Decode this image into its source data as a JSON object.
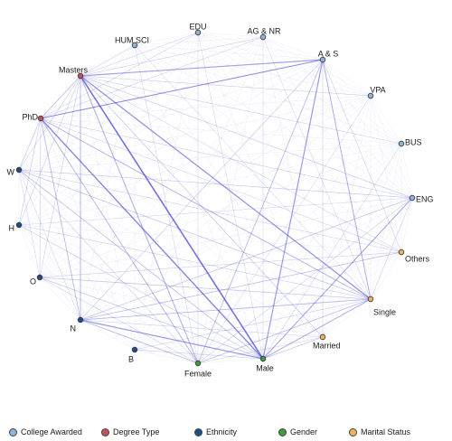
{
  "categories": {
    "college": {
      "label": "College Awarded",
      "color": "#8fb4d4"
    },
    "degree": {
      "label": "Degree Type",
      "color": "#c64f56"
    },
    "ethnicity": {
      "label": "Ethnicity",
      "color": "#1f4e87"
    },
    "gender": {
      "label": "Gender",
      "color": "#3f9b3f"
    },
    "marital": {
      "label": "Marital Status",
      "color": "#f0b260"
    }
  },
  "nodes": [
    {
      "id": "edu",
      "label": "EDU",
      "cat": "college"
    },
    {
      "id": "agnr",
      "label": "AG & NR",
      "cat": "college"
    },
    {
      "id": "humsci",
      "label": "HUM SCI",
      "cat": "college"
    },
    {
      "id": "as",
      "label": "A & S",
      "cat": "college"
    },
    {
      "id": "vpa",
      "label": "VPA",
      "cat": "college"
    },
    {
      "id": "bus",
      "label": "BUS",
      "cat": "college"
    },
    {
      "id": "eng",
      "label": "ENG",
      "cat": "college"
    },
    {
      "id": "masters",
      "label": "Masters",
      "cat": "degree"
    },
    {
      "id": "phd",
      "label": "PhD",
      "cat": "degree"
    },
    {
      "id": "w",
      "label": "W",
      "cat": "ethnicity"
    },
    {
      "id": "h",
      "label": "H",
      "cat": "ethnicity"
    },
    {
      "id": "o",
      "label": "O",
      "cat": "ethnicity"
    },
    {
      "id": "n",
      "label": "N",
      "cat": "ethnicity"
    },
    {
      "id": "b",
      "label": "B",
      "cat": "ethnicity"
    },
    {
      "id": "female",
      "label": "Female",
      "cat": "gender"
    },
    {
      "id": "male",
      "label": "Male",
      "cat": "gender"
    },
    {
      "id": "others",
      "label": "Others",
      "cat": "marital"
    },
    {
      "id": "single",
      "label": "Single",
      "cat": "marital"
    },
    {
      "id": "married",
      "label": "Married",
      "cat": "marital"
    }
  ],
  "links": [
    {
      "source": "masters",
      "target": "male",
      "strength": 0.85
    },
    {
      "source": "phd",
      "target": "male",
      "strength": 0.7
    },
    {
      "source": "masters",
      "target": "single",
      "strength": 0.6
    },
    {
      "source": "masters",
      "target": "as",
      "strength": 0.5
    },
    {
      "source": "phd",
      "target": "as",
      "strength": 0.45
    },
    {
      "source": "as",
      "target": "male",
      "strength": 0.55
    },
    {
      "source": "as",
      "target": "single",
      "strength": 0.4
    },
    {
      "source": "n",
      "target": "male",
      "strength": 0.55
    },
    {
      "source": "male",
      "target": "eng",
      "strength": 0.45
    },
    {
      "source": "male",
      "target": "single",
      "strength": 0.4
    },
    {
      "source": "masters",
      "target": "female",
      "strength": 0.4
    },
    {
      "source": "phd",
      "target": "female",
      "strength": 0.35
    },
    {
      "source": "phd",
      "target": "single",
      "strength": 0.35
    },
    {
      "source": "masters",
      "target": "n",
      "strength": 0.35
    },
    {
      "source": "phd",
      "target": "n",
      "strength": 0.3
    },
    {
      "source": "n",
      "target": "single",
      "strength": 0.3
    },
    {
      "source": "n",
      "target": "female",
      "strength": 0.3
    },
    {
      "source": "masters",
      "target": "phd",
      "strength": 0.3
    },
    {
      "source": "female",
      "target": "as",
      "strength": 0.3
    },
    {
      "source": "as",
      "target": "phd",
      "strength": 0.25
    },
    {
      "source": "w",
      "target": "male",
      "strength": 0.25
    },
    {
      "source": "w",
      "target": "single",
      "strength": 0.2
    },
    {
      "source": "o",
      "target": "single",
      "strength": 0.2
    },
    {
      "source": "o",
      "target": "male",
      "strength": 0.2
    },
    {
      "source": "n",
      "target": "others",
      "strength": 0.25
    },
    {
      "source": "n",
      "target": "eng",
      "strength": 0.2
    },
    {
      "source": "female",
      "target": "single",
      "strength": 0.25
    },
    {
      "source": "male",
      "target": "married",
      "strength": 0.2
    },
    {
      "source": "masters",
      "target": "married",
      "strength": 0.2
    },
    {
      "source": "phd",
      "target": "w",
      "strength": 0.2
    },
    {
      "source": "masters",
      "target": "eng",
      "strength": 0.15
    },
    {
      "source": "as",
      "target": "n",
      "strength": 0.15
    },
    {
      "source": "w",
      "target": "eng",
      "strength": 0.15
    },
    {
      "source": "h",
      "target": "male",
      "strength": 0.15
    },
    {
      "source": "b",
      "target": "male",
      "strength": 0.12
    },
    {
      "source": "female",
      "target": "eng",
      "strength": 0.12
    },
    {
      "source": "masters",
      "target": "vpa",
      "strength": 0.1
    },
    {
      "source": "masters",
      "target": "bus",
      "strength": 0.1
    },
    {
      "source": "masters",
      "target": "humsci",
      "strength": 0.1
    },
    {
      "source": "masters",
      "target": "edu",
      "strength": 0.1
    },
    {
      "source": "masters",
      "target": "agnr",
      "strength": 0.1
    },
    {
      "source": "phd",
      "target": "edu",
      "strength": 0.08
    },
    {
      "source": "phd",
      "target": "agnr",
      "strength": 0.08
    },
    {
      "source": "phd",
      "target": "h",
      "strength": 0.12
    },
    {
      "source": "phd",
      "target": "o",
      "strength": 0.12
    },
    {
      "source": "w",
      "target": "female",
      "strength": 0.12
    },
    {
      "source": "h",
      "target": "single",
      "strength": 0.1
    },
    {
      "source": "o",
      "target": "others",
      "strength": 0.1
    },
    {
      "source": "o",
      "target": "female",
      "strength": 0.1
    },
    {
      "source": "b",
      "target": "single",
      "strength": 0.08
    },
    {
      "source": "as",
      "target": "others",
      "strength": 0.1
    },
    {
      "source": "as",
      "target": "married",
      "strength": 0.1
    },
    {
      "source": "eng",
      "target": "single",
      "strength": 0.1
    },
    {
      "source": "bus",
      "target": "male",
      "strength": 0.08
    },
    {
      "source": "vpa",
      "target": "female",
      "strength": 0.06
    },
    {
      "source": "edu",
      "target": "female",
      "strength": 0.06
    },
    {
      "source": "humsci",
      "target": "female",
      "strength": 0.06
    },
    {
      "source": "agnr",
      "target": "male",
      "strength": 0.06
    },
    {
      "source": "w",
      "target": "others",
      "strength": 0.08
    },
    {
      "source": "h",
      "target": "eng",
      "strength": 0.06
    },
    {
      "source": "n",
      "target": "married",
      "strength": 0.08
    },
    {
      "source": "female",
      "target": "married",
      "strength": 0.08
    },
    {
      "source": "w",
      "target": "o",
      "strength": 0.06
    },
    {
      "source": "w",
      "target": "n",
      "strength": 0.06
    },
    {
      "source": "phd",
      "target": "eng",
      "strength": 0.1
    },
    {
      "source": "phd",
      "target": "others",
      "strength": 0.08
    },
    {
      "source": "masters",
      "target": "others",
      "strength": 0.08
    },
    {
      "source": "edu",
      "target": "male",
      "strength": 0.05
    },
    {
      "source": "agnr",
      "target": "single",
      "strength": 0.05
    },
    {
      "source": "humsci",
      "target": "single",
      "strength": 0.05
    },
    {
      "source": "masters",
      "target": "w",
      "strength": 0.12
    },
    {
      "source": "masters",
      "target": "h",
      "strength": 0.1
    },
    {
      "source": "masters",
      "target": "o",
      "strength": 0.1
    }
  ]
}
